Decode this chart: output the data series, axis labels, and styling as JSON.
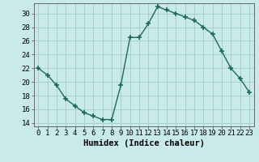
{
  "x": [
    0,
    1,
    2,
    3,
    4,
    5,
    6,
    7,
    8,
    9,
    10,
    11,
    12,
    13,
    14,
    15,
    16,
    17,
    18,
    19,
    20,
    21,
    22,
    23
  ],
  "y": [
    22.0,
    21.0,
    19.5,
    17.5,
    16.5,
    15.5,
    15.0,
    14.5,
    14.5,
    19.5,
    26.5,
    26.5,
    28.5,
    31.0,
    30.5,
    30.0,
    29.5,
    29.0,
    28.0,
    27.0,
    24.5,
    22.0,
    20.5,
    18.5
  ],
  "line_color": "#1a6b5a",
  "marker": "+",
  "markersize": 4,
  "linewidth": 1.0,
  "bg_color": "#c8eaea",
  "grid_color": "#a8cece",
  "xlabel": "Humidex (Indice chaleur)",
  "ylim": [
    13.5,
    31.5
  ],
  "xlim": [
    -0.5,
    23.5
  ],
  "yticks": [
    14,
    16,
    18,
    20,
    22,
    24,
    26,
    28,
    30
  ],
  "xtick_labels": [
    "0",
    "1",
    "2",
    "3",
    "4",
    "5",
    "6",
    "7",
    "8",
    "9",
    "10",
    "11",
    "12",
    "13",
    "14",
    "15",
    "16",
    "17",
    "18",
    "19",
    "20",
    "21",
    "22",
    "23"
  ],
  "xlabel_fontsize": 7.5,
  "tick_fontsize": 6.5
}
